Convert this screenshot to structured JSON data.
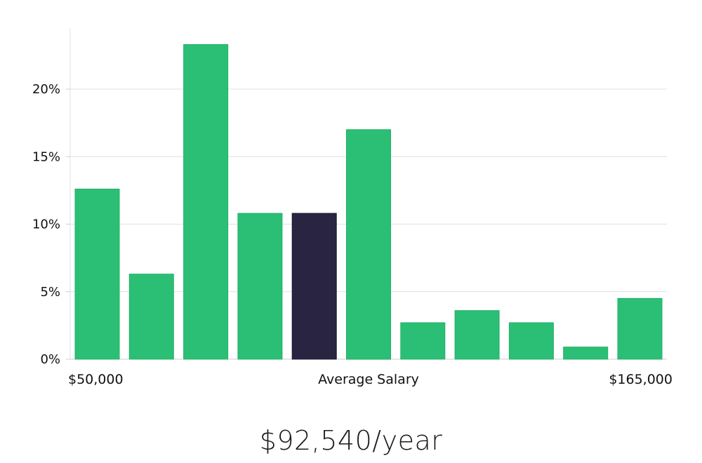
{
  "chart_data": {
    "type": "bar",
    "title": "",
    "xlabel": "Average Salary",
    "ylabel": "",
    "x_range_labels": {
      "min": "$50,000",
      "max": "$165,000"
    },
    "ylim": [
      0,
      24
    ],
    "yticks": [
      0,
      5,
      10,
      15,
      20
    ],
    "ytick_labels": [
      "0%",
      "5%",
      "10%",
      "15%",
      "20%"
    ],
    "grid": true,
    "bar_count": 11,
    "values": [
      12.6,
      6.3,
      23.3,
      10.8,
      10.8,
      17.0,
      2.7,
      3.6,
      2.7,
      0.9,
      4.5
    ],
    "highlight_index": 4,
    "colors": {
      "bar": "#2bbf76",
      "highlight": "#292442",
      "grid": "#e0e0e0",
      "axis": "#cccccc"
    }
  },
  "summary": {
    "average_salary": "$92,540/year"
  }
}
